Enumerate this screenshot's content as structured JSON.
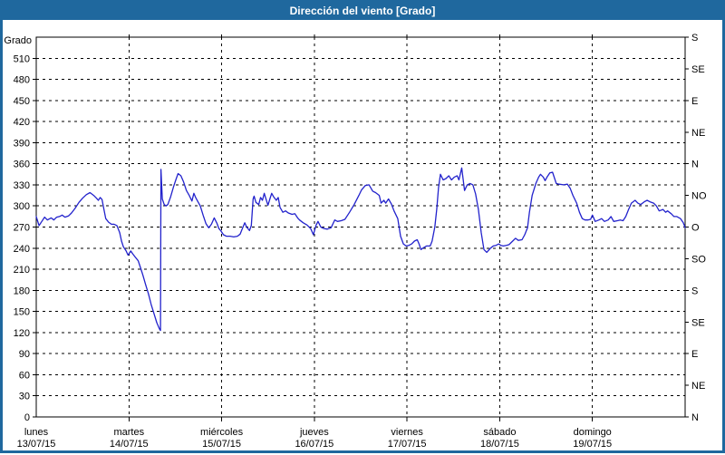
{
  "window": {
    "title": "Dirección del viento [Grado]"
  },
  "colors": {
    "frame": "#1F689E",
    "title_text": "#FFFFFF",
    "background": "#FFFFFF",
    "grid": "#000000",
    "axis_text": "#000000",
    "series_line": "#2222CC"
  },
  "chart_data": {
    "type": "line",
    "title": "Dirección del viento [Grado]",
    "grid": "dashed",
    "y_axis_left": {
      "title": "Grado",
      "min": 0,
      "max": 540,
      "tick_step": 30,
      "tick_labels": [
        0,
        30,
        60,
        90,
        120,
        150,
        180,
        210,
        240,
        270,
        300,
        330,
        360,
        390,
        420,
        450,
        480,
        510
      ]
    },
    "y_axis_right": {
      "tick_step": 45,
      "labels": [
        {
          "angle": 540,
          "label": "S"
        },
        {
          "angle": 495,
          "label": "SE"
        },
        {
          "angle": 450,
          "label": "E"
        },
        {
          "angle": 405,
          "label": "NE"
        },
        {
          "angle": 360,
          "label": "N"
        },
        {
          "angle": 315,
          "label": "NO"
        },
        {
          "angle": 270,
          "label": "O"
        },
        {
          "angle": 225,
          "label": "SO"
        },
        {
          "angle": 180,
          "label": "S"
        },
        {
          "angle": 135,
          "label": "SE"
        },
        {
          "angle": 90,
          "label": "E"
        },
        {
          "angle": 45,
          "label": "NE"
        },
        {
          "angle": 0,
          "label": "N"
        }
      ]
    },
    "x_axis": {
      "span_days": 7,
      "days": [
        {
          "name": "lunes",
          "date": "13/07/15"
        },
        {
          "name": "martes",
          "date": "14/07/15"
        },
        {
          "name": "miércoles",
          "date": "15/07/15"
        },
        {
          "name": "jueves",
          "date": "16/07/15"
        },
        {
          "name": "viernes",
          "date": "17/07/15"
        },
        {
          "name": "sábado",
          "date": "18/07/15"
        },
        {
          "name": "domingo",
          "date": "19/07/15"
        }
      ]
    },
    "series": [
      {
        "name": "Dirección del viento",
        "color": "#2222CC",
        "x_unit": "days since lunes 13/07/15 00:00",
        "y_unit": "degrees",
        "points": [
          [
            0.0,
            285
          ],
          [
            0.03,
            272
          ],
          [
            0.06,
            278
          ],
          [
            0.09,
            284
          ],
          [
            0.12,
            280
          ],
          [
            0.16,
            283
          ],
          [
            0.19,
            280
          ],
          [
            0.22,
            284
          ],
          [
            0.25,
            285
          ],
          [
            0.28,
            287
          ],
          [
            0.31,
            284
          ],
          [
            0.35,
            286
          ],
          [
            0.38,
            290
          ],
          [
            0.42,
            297
          ],
          [
            0.46,
            305
          ],
          [
            0.5,
            311
          ],
          [
            0.54,
            316
          ],
          [
            0.58,
            319
          ],
          [
            0.62,
            315
          ],
          [
            0.65,
            311
          ],
          [
            0.67,
            308
          ],
          [
            0.69,
            312
          ],
          [
            0.71,
            309
          ],
          [
            0.73,
            295
          ],
          [
            0.75,
            282
          ],
          [
            0.78,
            277
          ],
          [
            0.81,
            274
          ],
          [
            0.84,
            274
          ],
          [
            0.87,
            272
          ],
          [
            0.9,
            262
          ],
          [
            0.92,
            250
          ],
          [
            0.94,
            242
          ],
          [
            0.97,
            236
          ],
          [
            0.99,
            230
          ],
          [
            1.02,
            236
          ],
          [
            1.04,
            232
          ],
          [
            1.07,
            227
          ],
          [
            1.1,
            222
          ],
          [
            1.12,
            214
          ],
          [
            1.15,
            202
          ],
          [
            1.18,
            188
          ],
          [
            1.21,
            175
          ],
          [
            1.24,
            160
          ],
          [
            1.27,
            147
          ],
          [
            1.3,
            134
          ],
          [
            1.33,
            125
          ],
          [
            1.34,
            123
          ],
          [
            1.345,
            352
          ],
          [
            1.36,
            310
          ],
          [
            1.38,
            302
          ],
          [
            1.4,
            300
          ],
          [
            1.42,
            302
          ],
          [
            1.45,
            313
          ],
          [
            1.48,
            327
          ],
          [
            1.51,
            339
          ],
          [
            1.53,
            346
          ],
          [
            1.56,
            343
          ],
          [
            1.59,
            334
          ],
          [
            1.62,
            322
          ],
          [
            1.65,
            315
          ],
          [
            1.68,
            307
          ],
          [
            1.7,
            318
          ],
          [
            1.72,
            312
          ],
          [
            1.74,
            307
          ],
          [
            1.77,
            300
          ],
          [
            1.8,
            287
          ],
          [
            1.83,
            275
          ],
          [
            1.86,
            269
          ],
          [
            1.89,
            274
          ],
          [
            1.92,
            283
          ],
          [
            1.95,
            275
          ],
          [
            1.97,
            268
          ],
          [
            1.99,
            265
          ],
          [
            2.02,
            259
          ],
          [
            2.05,
            257
          ],
          [
            2.09,
            257
          ],
          [
            2.13,
            256
          ],
          [
            2.17,
            257
          ],
          [
            2.2,
            260
          ],
          [
            2.23,
            270
          ],
          [
            2.25,
            276
          ],
          [
            2.27,
            270
          ],
          [
            2.3,
            265
          ],
          [
            2.32,
            272
          ],
          [
            2.34,
            310
          ],
          [
            2.35,
            314
          ],
          [
            2.37,
            305
          ],
          [
            2.4,
            302
          ],
          [
            2.42,
            312
          ],
          [
            2.44,
            308
          ],
          [
            2.46,
            318
          ],
          [
            2.48,
            309
          ],
          [
            2.5,
            301
          ],
          [
            2.52,
            310
          ],
          [
            2.54,
            318
          ],
          [
            2.56,
            313
          ],
          [
            2.59,
            308
          ],
          [
            2.61,
            312
          ],
          [
            2.63,
            298
          ],
          [
            2.66,
            291
          ],
          [
            2.69,
            293
          ],
          [
            2.72,
            290
          ],
          [
            2.76,
            288
          ],
          [
            2.79,
            289
          ],
          [
            2.82,
            283
          ],
          [
            2.84,
            280
          ],
          [
            2.88,
            276
          ],
          [
            2.92,
            273
          ],
          [
            2.96,
            268
          ],
          [
            2.99,
            259
          ],
          [
            3.02,
            273
          ],
          [
            3.04,
            278
          ],
          [
            3.07,
            270
          ],
          [
            3.1,
            268
          ],
          [
            3.14,
            267
          ],
          [
            3.18,
            269
          ],
          [
            3.22,
            280
          ],
          [
            3.25,
            278
          ],
          [
            3.29,
            279
          ],
          [
            3.33,
            281
          ],
          [
            3.38,
            291
          ],
          [
            3.43,
            302
          ],
          [
            3.48,
            315
          ],
          [
            3.51,
            323
          ],
          [
            3.55,
            329
          ],
          [
            3.59,
            330
          ],
          [
            3.63,
            321
          ],
          [
            3.66,
            319
          ],
          [
            3.68,
            317
          ],
          [
            3.7,
            315
          ],
          [
            3.72,
            304
          ],
          [
            3.75,
            308
          ],
          [
            3.77,
            304
          ],
          [
            3.8,
            310
          ],
          [
            3.83,
            303
          ],
          [
            3.86,
            293
          ],
          [
            3.9,
            282
          ],
          [
            3.93,
            257
          ],
          [
            3.96,
            246
          ],
          [
            3.99,
            243
          ],
          [
            4.02,
            244
          ],
          [
            4.05,
            246
          ],
          [
            4.08,
            250
          ],
          [
            4.11,
            252
          ],
          [
            4.13,
            246
          ],
          [
            4.15,
            238
          ],
          [
            4.17,
            240
          ],
          [
            4.21,
            243
          ],
          [
            4.25,
            243
          ],
          [
            4.27,
            250
          ],
          [
            4.3,
            270
          ],
          [
            4.32,
            295
          ],
          [
            4.34,
            326
          ],
          [
            4.36,
            345
          ],
          [
            4.39,
            337
          ],
          [
            4.42,
            339
          ],
          [
            4.45,
            343
          ],
          [
            4.48,
            337
          ],
          [
            4.51,
            341
          ],
          [
            4.54,
            343
          ],
          [
            4.56,
            337
          ],
          [
            4.59,
            354
          ],
          [
            4.62,
            322
          ],
          [
            4.65,
            330
          ],
          [
            4.68,
            332
          ],
          [
            4.71,
            330
          ],
          [
            4.74,
            317
          ],
          [
            4.77,
            295
          ],
          [
            4.8,
            262
          ],
          [
            4.83,
            238
          ],
          [
            4.86,
            234
          ],
          [
            4.9,
            240
          ],
          [
            4.93,
            243
          ],
          [
            4.96,
            244
          ],
          [
            4.99,
            246
          ],
          [
            5.01,
            244
          ],
          [
            5.04,
            243
          ],
          [
            5.07,
            244
          ],
          [
            5.1,
            245
          ],
          [
            5.14,
            250
          ],
          [
            5.17,
            254
          ],
          [
            5.2,
            251
          ],
          [
            5.24,
            252
          ],
          [
            5.27,
            259
          ],
          [
            5.3,
            269
          ],
          [
            5.32,
            291
          ],
          [
            5.35,
            315
          ],
          [
            5.39,
            332
          ],
          [
            5.42,
            341
          ],
          [
            5.44,
            345
          ],
          [
            5.47,
            341
          ],
          [
            5.49,
            336
          ],
          [
            5.51,
            341
          ],
          [
            5.54,
            347
          ],
          [
            5.57,
            348
          ],
          [
            5.61,
            332
          ],
          [
            5.64,
            331
          ],
          [
            5.69,
            330
          ],
          [
            5.73,
            331
          ],
          [
            5.76,
            325
          ],
          [
            5.79,
            315
          ],
          [
            5.83,
            304
          ],
          [
            5.86,
            291
          ],
          [
            5.89,
            282
          ],
          [
            5.92,
            280
          ],
          [
            5.95,
            280
          ],
          [
            5.98,
            281
          ],
          [
            6.0,
            287
          ],
          [
            6.03,
            278
          ],
          [
            6.07,
            280
          ],
          [
            6.1,
            282
          ],
          [
            6.13,
            278
          ],
          [
            6.17,
            280
          ],
          [
            6.2,
            285
          ],
          [
            6.23,
            278
          ],
          [
            6.27,
            279
          ],
          [
            6.3,
            280
          ],
          [
            6.33,
            279
          ],
          [
            6.36,
            285
          ],
          [
            6.39,
            295
          ],
          [
            6.42,
            304
          ],
          [
            6.46,
            308
          ],
          [
            6.49,
            304
          ],
          [
            6.52,
            302
          ],
          [
            6.56,
            306
          ],
          [
            6.59,
            308
          ],
          [
            6.62,
            306
          ],
          [
            6.66,
            304
          ],
          [
            6.69,
            300
          ],
          [
            6.72,
            293
          ],
          [
            6.76,
            295
          ],
          [
            6.79,
            291
          ],
          [
            6.81,
            293
          ],
          [
            6.85,
            289
          ],
          [
            6.88,
            285
          ],
          [
            6.91,
            285
          ],
          [
            6.95,
            282
          ],
          [
            6.98,
            276
          ],
          [
            7.0,
            269
          ]
        ]
      }
    ]
  }
}
